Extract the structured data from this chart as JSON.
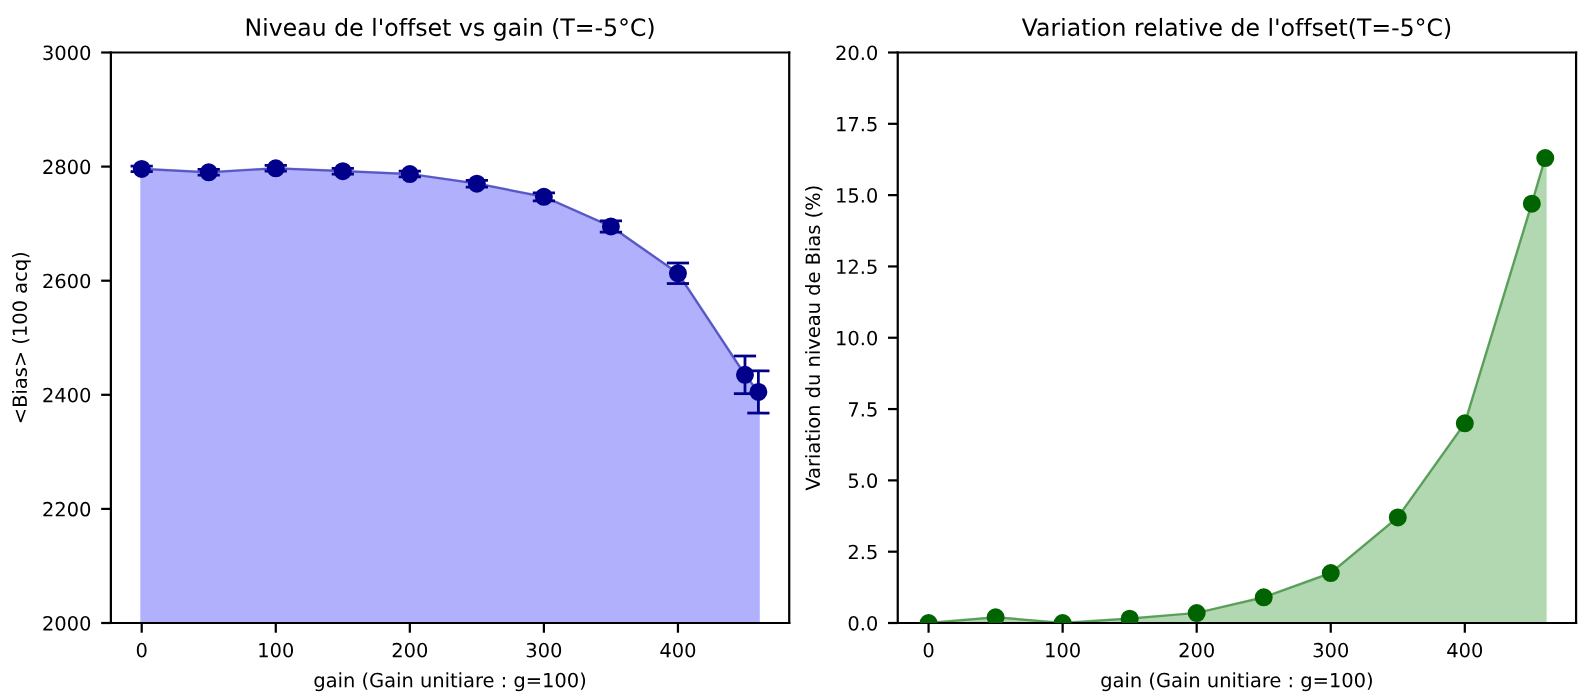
{
  "chart_data": [
    {
      "type": "area",
      "title": "Niveau de l'offset vs gain (T=-5°C)",
      "xlabel": "gain (Gain unitiare : g=100)",
      "ylabel": "<Bias> (100 acq)",
      "x": [
        0,
        50,
        100,
        150,
        200,
        250,
        300,
        350,
        400,
        450,
        460
      ],
      "series": [
        {
          "color": "#b0b0fc",
          "colors": [
            "#00008b",
            "#00008b",
            "#00008b",
            "#00008b",
            "#00008b",
            "#00008b",
            "#00008b",
            "#00008b",
            "#00008b",
            "#00008b",
            "#00008b"
          ],
          "values": [
            2796,
            2790,
            2797,
            2792,
            2787,
            2770,
            2747,
            2695,
            2613,
            2435,
            2405
          ],
          "errors": [
            5,
            5,
            5,
            5,
            5,
            6,
            7,
            10,
            18,
            33,
            37
          ]
        }
      ],
      "marker": "circle",
      "xlim": [
        -23,
        483
      ],
      "xticks": [
        0,
        100,
        200,
        300,
        400
      ],
      "ylim": [
        2000,
        3000
      ],
      "yticks": [
        2000,
        2200,
        2400,
        2600,
        2800,
        3000
      ],
      "grid": false
    },
    {
      "type": "area",
      "title": "Variation relative de l'offset(T=-5°C)",
      "xlabel": "gain (Gain unitiare : g=100)",
      "ylabel": "Variation du niveau de Bias (%)",
      "x": [
        0,
        50,
        100,
        150,
        200,
        250,
        300,
        350,
        400,
        450,
        460
      ],
      "series": [
        {
          "color": "#b2d8b2",
          "colors": [
            "#006400",
            "#006400",
            "#006400",
            "#006400",
            "#006400",
            "#006400",
            "#006400",
            "#006400",
            "#006400",
            "#006400",
            "#006400"
          ],
          "values": [
            0,
            0.2,
            0,
            0.15,
            0.35,
            0.9,
            1.75,
            3.7,
            7.0,
            14.7,
            16.3
          ]
        }
      ],
      "marker": "circle",
      "xlim": [
        -23,
        483
      ],
      "xticks": [
        0,
        100,
        200,
        300,
        400
      ],
      "ylim": [
        0,
        20
      ],
      "yticks": [
        {
          "value": 0,
          "label": "0.0"
        },
        {
          "value": 2.5,
          "label": "2.5"
        },
        {
          "value": 5,
          "label": "5.0"
        },
        {
          "value": 7.5,
          "label": "7.5"
        },
        {
          "value": 10,
          "label": "10.0"
        },
        {
          "value": 12.5,
          "label": "12.5"
        },
        {
          "value": 15,
          "label": "15.0"
        },
        {
          "value": 17.5,
          "label": "17.5"
        },
        {
          "value": 20,
          "label": "20.0"
        }
      ],
      "grid": false
    }
  ]
}
